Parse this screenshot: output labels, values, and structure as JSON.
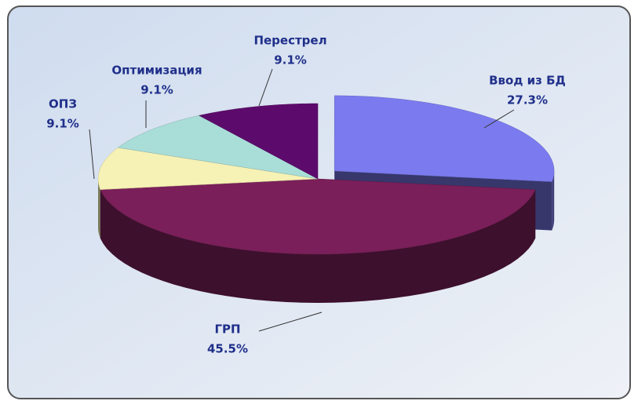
{
  "chart_data": {
    "type": "pie3d",
    "categories": [
      "Ввод из БД",
      "ГРП",
      "ОПЗ",
      "Оптимизация",
      "Перестрел"
    ],
    "values": [
      27.3,
      45.5,
      9.1,
      9.1,
      9.1
    ],
    "value_labels": [
      "27.3%",
      "45.5%",
      "9.1%",
      "9.1%",
      "9.1%"
    ],
    "colors": [
      "#7b7bef",
      "#7a1f5a",
      "#f6f1b4",
      "#a9ddd8",
      "#5c0b6c"
    ]
  }
}
